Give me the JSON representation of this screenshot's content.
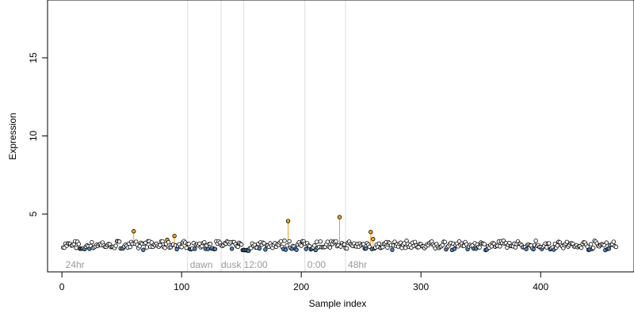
{
  "chart_data": {
    "type": "scatter",
    "xlabel": "Sample index",
    "ylabel": "Expression",
    "xlim": [
      -12,
      478
    ],
    "ylim": [
      1.3,
      18.7
    ],
    "x_ticks": [
      "0",
      "100",
      "200",
      "300",
      "400"
    ],
    "x_tick_values": [
      0,
      100,
      200,
      300,
      400
    ],
    "y_ticks": [
      "5",
      "10",
      "15"
    ],
    "y_tick_values": [
      5,
      10,
      15
    ],
    "baseline": 3.0,
    "n_points": 463,
    "divider_x": [
      105,
      133,
      152,
      203,
      237
    ],
    "region_labels": [
      {
        "text": "24hr",
        "x": 3
      },
      {
        "text": "dawn",
        "x": 107
      },
      {
        "text": "dusk",
        "x": 133
      },
      {
        "text": "12:00",
        "x": 152
      },
      {
        "text": "0:00",
        "x": 205
      },
      {
        "text": "48hr",
        "x": 239
      }
    ],
    "highlighted_points": [
      {
        "x": 60,
        "y": 3.9
      },
      {
        "x": 88,
        "y": 3.35
      },
      {
        "x": 94,
        "y": 3.6
      },
      {
        "x": 189,
        "y": 4.55
      },
      {
        "x": 232,
        "y": 4.8
      },
      {
        "x": 258,
        "y": 3.85
      },
      {
        "x": 260,
        "y": 3.4
      }
    ],
    "colors": {
      "point_fill": "#ffffff",
      "point_stroke": "#000000",
      "low_point_fill": "#4f86c6",
      "high_point_fill": "#f5a623",
      "stem": "#f59a23",
      "divider": "#dddddd",
      "region_label": "#9a9a9a"
    },
    "grid": false
  }
}
